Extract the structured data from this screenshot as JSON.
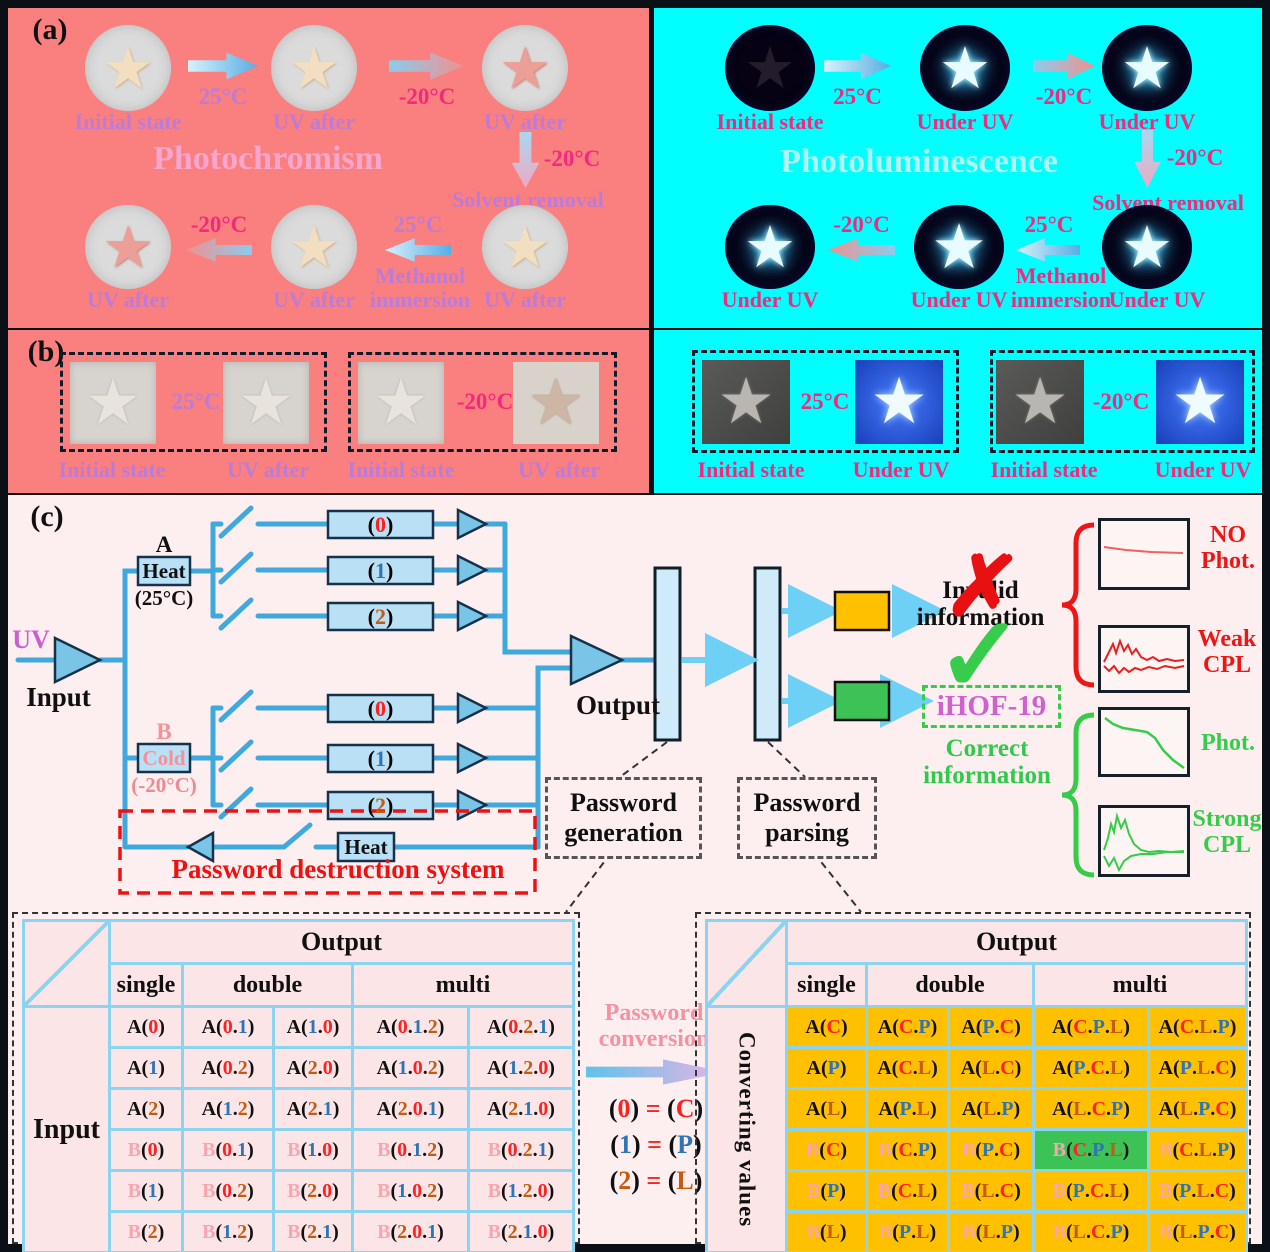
{
  "icons": {
    "star": "★",
    "cross": "✗",
    "check": "✓"
  },
  "panel_a": {
    "label": "(a)",
    "left": {
      "title": "Photochromism",
      "top_labels": [
        "Initial state",
        "UV after",
        "UV after"
      ],
      "bottom_labels": [
        "UV after",
        "UV after",
        "UV after"
      ],
      "arrows": {
        "t1": "25°C",
        "t2": "-20°C",
        "down": "-20°C",
        "solvent": "Solvent removal",
        "b1": "-20°C",
        "b2": "25°C",
        "methanol": "Methanol immersion"
      }
    },
    "right": {
      "title": "Photoluminescence",
      "top_labels": [
        "Initial state",
        "Under UV",
        "Under UV"
      ],
      "bottom_labels": [
        "Under UV",
        "Under UV",
        "Under UV"
      ],
      "arrows": {
        "t1": "25°C",
        "t2": "-20°C",
        "down": "-20°C",
        "solvent": "Solvent removal",
        "b1": "-20°C",
        "b2": "25°C",
        "methanol": "Methanol immersion"
      }
    }
  },
  "panel_b": {
    "label": "(b)",
    "left": {
      "groups": [
        {
          "temp": "25°C",
          "before": "Initial state",
          "after": "UV after"
        },
        {
          "temp": "-20°C",
          "before": "Initial state",
          "after": "UV after"
        }
      ]
    },
    "right": {
      "groups": [
        {
          "temp": "25°C",
          "before": "Initial state",
          "after": "Under UV"
        },
        {
          "temp": "-20°C",
          "before": "Initial state",
          "after": "Under UV"
        }
      ]
    }
  },
  "panel_c": {
    "label": "(c)",
    "input_signal": "UV",
    "input_label": "Input",
    "branch_a": {
      "name": "A",
      "box": "Heat",
      "temp": "(25°C)",
      "channels": [
        "(0)",
        "(1)",
        "(2)"
      ]
    },
    "branch_b": {
      "name": "B",
      "box": "Cold",
      "temp": "(-20°C)",
      "channels": [
        "(0)",
        "(1)",
        "(2)"
      ]
    },
    "output_label": "Output",
    "destruction": {
      "box": "Heat",
      "label": "Password destruction system"
    },
    "generation_label": "Password generation",
    "parsing_label": "Password parsing",
    "invalid_label": "Invalid information",
    "compound": "iHOF-19",
    "correct_label": "Correct information",
    "spectra": [
      "NO Phot.",
      "Weak CPL",
      "Phot.",
      "Strong CPL"
    ],
    "conversion": {
      "title": "Password conversion",
      "rules": [
        "(0) = (C)",
        "(1) = (P)",
        "(2) = (L)"
      ]
    }
  },
  "tables": {
    "left": {
      "output_header": "Output",
      "subheaders": [
        "single",
        "double",
        "multi"
      ],
      "row_header": "Input",
      "rows": [
        [
          "A(0)",
          "A(0.1)",
          "A(1.0)",
          "A(0.1.2)",
          "A(0.2.1)"
        ],
        [
          "A(1)",
          "A(0.2)",
          "A(2.0)",
          "A(1.0.2)",
          "A(1.2.0)"
        ],
        [
          "A(2)",
          "A(1.2)",
          "A(2.1)",
          "A(2.0.1)",
          "A(2.1.0)"
        ],
        [
          "B(0)",
          "B(0.1)",
          "B(1.0)",
          "B(0.1.2)",
          "B(0.2.1)"
        ],
        [
          "B(1)",
          "B(0.2)",
          "B(2.0)",
          "B(1.0.2)",
          "B(1.2.0)"
        ],
        [
          "B(2)",
          "B(1.2)",
          "B(2.1)",
          "B(2.0.1)",
          "B(2.1.0)"
        ]
      ]
    },
    "right": {
      "output_header": "Output",
      "subheaders": [
        "single",
        "double",
        "multi"
      ],
      "row_header": "Converting values",
      "rows": [
        [
          "A(C)",
          "A(C.P)",
          "A(P.C)",
          "A(C.P.L)",
          "A(C.L.P)"
        ],
        [
          "A(P)",
          "A(C.L)",
          "A(L.C)",
          "A(P.C.L)",
          "A(P.L.C)"
        ],
        [
          "A(L)",
          "A(P.L)",
          "A(L.P)",
          "A(L.C.P)",
          "A(L.P.C)"
        ],
        [
          "B(C)",
          "B(C.P)",
          "B(P.C)",
          "B(C.P.L)",
          "B(C.L.P)"
        ],
        [
          "B(P)",
          "B(C.L)",
          "B(L.C)",
          "B(P.C.L)",
          "B(P.L.C)"
        ],
        [
          "B(L)",
          "B(P.L)",
          "B(L.P)",
          "B(L.C.P)",
          "B(L.P.C)"
        ]
      ],
      "highlight": {
        "row": 3,
        "col": 3
      }
    }
  },
  "colors": {
    "salmon_bg": "#FA7F7F",
    "cyan_bg": "#00FFFF",
    "panel_c_bg": "#FDEFF0",
    "circuit_blue": "#3FA8DC",
    "component_fill": "#B9E0F4",
    "orange_box": "#FFC000",
    "green_box": "#3DC355",
    "alert_red": "#EE1515",
    "table_pink": "#FBE5E7",
    "table_border": "#8AD4F2",
    "violet_label": "#BC7BD8",
    "deeppink_label": "#F4287E",
    "compound_magenta": "#D05FD0",
    "code_map": {
      "0": "#FF2020",
      "C": "#FF2020",
      "1": "#2E75B6",
      "P": "#2E75B6",
      "2": "#C55A11",
      "L": "#C55A11",
      "B": "#F7A6AE",
      "=": "#FF2020"
    }
  }
}
